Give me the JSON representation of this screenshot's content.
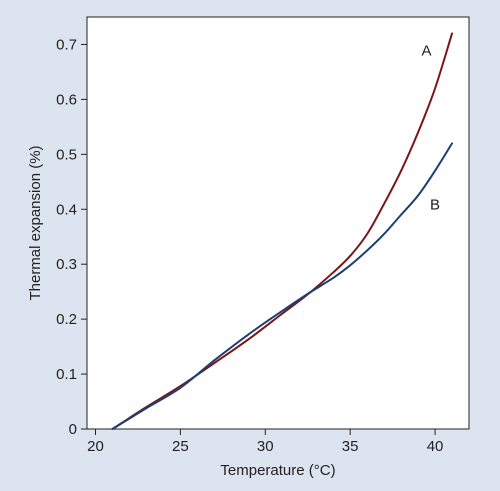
{
  "chart_data": {
    "type": "line",
    "xlabel": "Temperature (°C)",
    "ylabel": "Thermal expansion (%)",
    "xlim": [
      19.5,
      42
    ],
    "ylim": [
      0,
      0.75
    ],
    "x_ticks": [
      20,
      25,
      30,
      35,
      40
    ],
    "y_ticks": [
      0,
      0.1,
      0.2,
      0.3,
      0.4,
      0.5,
      0.6,
      0.7
    ],
    "grid": false,
    "colors": {
      "A": "#7a1518",
      "B": "#1d3f75",
      "background": "#dce4ef",
      "plot_area": "#ffffff"
    },
    "series": [
      {
        "name": "A",
        "label_at": [
          39.5,
          0.68
        ],
        "x": [
          21,
          23,
          25,
          27,
          29,
          31,
          32.5,
          34,
          35,
          36,
          37,
          38,
          39,
          40,
          41
        ],
        "y": [
          0,
          0.04,
          0.078,
          0.12,
          0.163,
          0.21,
          0.245,
          0.285,
          0.315,
          0.355,
          0.41,
          0.47,
          0.54,
          0.62,
          0.72
        ]
      },
      {
        "name": "B",
        "label_at": [
          40,
          0.4
        ],
        "x": [
          21,
          23,
          25,
          27,
          29,
          31,
          32.5,
          34,
          35,
          36,
          37,
          38,
          39,
          40,
          41
        ],
        "y": [
          0,
          0.038,
          0.075,
          0.125,
          0.172,
          0.215,
          0.246,
          0.275,
          0.298,
          0.325,
          0.355,
          0.39,
          0.425,
          0.47,
          0.52
        ]
      }
    ]
  }
}
